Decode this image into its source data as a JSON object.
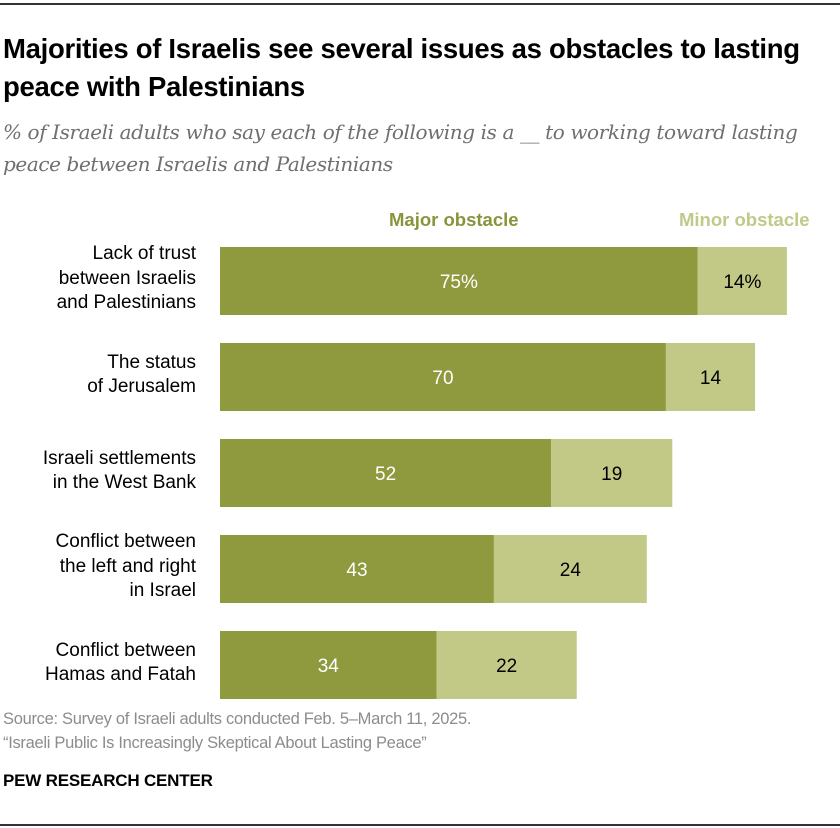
{
  "title": "Majorities of Israelis see several issues as obstacles to lasting peace with Palestinians",
  "subtitle": "% of Israeli adults who say each of the following is a __ to working toward lasting peace between Israelis and Palestinians",
  "source": {
    "line1": "Source: Survey of Israeli adults conducted Feb. 5–March 11, 2025.",
    "line2": "“Israeli Public Is Increasingly Skeptical About Lasting Peace”"
  },
  "brand": "PEW RESEARCH CENTER",
  "colors": {
    "major": "#8f9a3e",
    "minor": "#c2c987",
    "major_text": "#ffffff",
    "minor_text": "#000000"
  },
  "chart_data": {
    "type": "bar",
    "orientation": "horizontal",
    "stacked": true,
    "title": "Majorities of Israelis see several issues as obstacles to lasting peace with Palestinians",
    "subtitle": "% of Israeli adults who say each of the following is a __ to working toward lasting peace between Israelis and Palestinians",
    "xlabel": "",
    "ylabel": "",
    "xlim": [
      0,
      100
    ],
    "grid": false,
    "legend": "top",
    "categories": [
      [
        "Lack of trust",
        "between Israelis",
        "and Palestinians"
      ],
      [
        "The status",
        "of Jerusalem"
      ],
      [
        "Israeli settlements",
        "in the West Bank"
      ],
      [
        "Conflict between",
        "the left and right",
        "in Israel"
      ],
      [
        "Conflict between",
        "Hamas and Fatah"
      ]
    ],
    "series": [
      {
        "name": "Major obstacle",
        "values": [
          75,
          70,
          52,
          43,
          34
        ]
      },
      {
        "name": "Minor obstacle",
        "values": [
          14,
          14,
          19,
          24,
          22
        ]
      }
    ],
    "data_labels": {
      "Major obstacle": [
        "75%",
        "70",
        "52",
        "43",
        "34"
      ],
      "Minor obstacle": [
        "14%",
        "14",
        "19",
        "24",
        "22"
      ]
    }
  }
}
